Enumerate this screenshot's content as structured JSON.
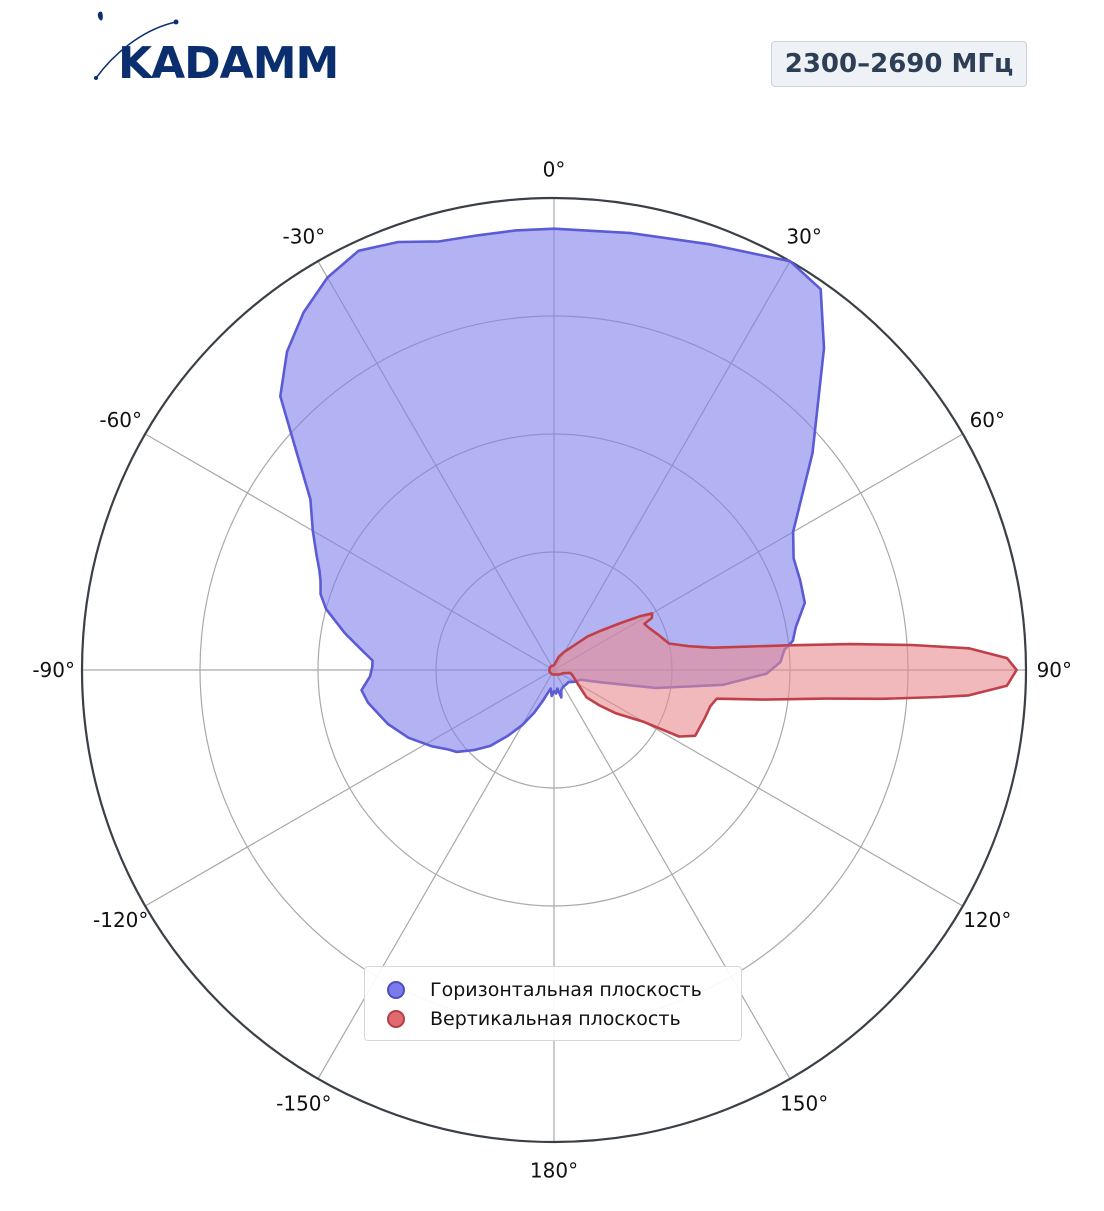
{
  "brand": {
    "name": "KADAMM",
    "color": "#0b2f6e"
  },
  "frequency_badge": "2300–2690 МГц",
  "chart_data": {
    "type": "polar",
    "angular_unit": "degrees",
    "zero_direction": "top",
    "direction": "clockwise",
    "angle_ticks": [
      0,
      30,
      60,
      90,
      120,
      150,
      180,
      -150,
      -120,
      -90,
      -60,
      -30
    ],
    "angle_tick_labels": [
      "0°",
      "30°",
      "60°",
      "90°",
      "120°",
      "150°",
      "180°",
      "-150°",
      "-120°",
      "-90°",
      "-60°",
      "-30°"
    ],
    "radial_range": [
      0,
      1
    ],
    "radial_gridlines": [
      0.25,
      0.5,
      0.75,
      1.0
    ],
    "radial_tick_labels_shown": false,
    "grid": true,
    "legend_position": "lower-center",
    "series": [
      {
        "name": "Горизонтальная плоскость",
        "color": "#5b5bd6",
        "fill": "#8080ec",
        "points": [
          [
            0,
            0.935
          ],
          [
            10,
            0.94
          ],
          [
            20,
            0.96
          ],
          [
            30,
            1.0
          ],
          [
            35,
            0.985
          ],
          [
            40,
            0.89
          ],
          [
            50,
            0.715
          ],
          [
            60,
            0.585
          ],
          [
            65,
            0.56
          ],
          [
            70,
            0.555
          ],
          [
            75,
            0.55
          ],
          [
            80,
            0.52
          ],
          [
            83,
            0.51
          ],
          [
            85,
            0.49
          ],
          [
            88,
            0.48
          ],
          [
            91,
            0.45
          ],
          [
            95,
            0.36
          ],
          [
            100,
            0.22
          ],
          [
            105,
            0.1
          ],
          [
            110,
            0.06
          ],
          [
            120,
            0.05
          ],
          [
            130,
            0.04
          ],
          [
            140,
            0.04
          ],
          [
            150,
            0.04
          ],
          [
            160,
            0.045
          ],
          [
            165,
            0.06
          ],
          [
            170,
            0.04
          ],
          [
            175,
            0.05
          ],
          [
            180,
            0.045
          ],
          [
            -175,
            0.055
          ],
          [
            -170,
            0.04
          ],
          [
            -165,
            0.05
          ],
          [
            -160,
            0.07
          ],
          [
            -155,
            0.1
          ],
          [
            -150,
            0.135
          ],
          [
            -145,
            0.17
          ],
          [
            -140,
            0.21
          ],
          [
            -135,
            0.24
          ],
          [
            -130,
            0.27
          ],
          [
            -127,
            0.28
          ],
          [
            -122,
            0.305
          ],
          [
            -115,
            0.34
          ],
          [
            -108,
            0.37
          ],
          [
            -100,
            0.4
          ],
          [
            -96,
            0.41
          ],
          [
            -92,
            0.39
          ],
          [
            -89,
            0.385
          ],
          [
            -87,
            0.385
          ],
          [
            -84,
            0.41
          ],
          [
            -80,
            0.45
          ],
          [
            -75,
            0.5
          ],
          [
            -72,
            0.52
          ],
          [
            -69,
            0.53
          ],
          [
            -67,
            0.54
          ],
          [
            -64,
            0.56
          ],
          [
            -60,
            0.59
          ],
          [
            -55,
            0.63
          ],
          [
            -50,
            0.71
          ],
          [
            -45,
            0.82
          ],
          [
            -40,
            0.88
          ],
          [
            -35,
            0.925
          ],
          [
            -30,
            0.96
          ],
          [
            -25,
            0.98
          ],
          [
            -20,
            0.965
          ],
          [
            -15,
            0.94
          ],
          [
            -10,
            0.935
          ],
          [
            -5,
            0.935
          ],
          [
            0,
            0.935
          ]
        ]
      },
      {
        "name": "Вертикальная плоскость",
        "color": "#c0404a",
        "fill": "#e88a90",
        "points": [
          [
            0,
            0.01
          ],
          [
            20,
            0.03
          ],
          [
            30,
            0.045
          ],
          [
            40,
            0.07
          ],
          [
            45,
            0.1
          ],
          [
            50,
            0.13
          ],
          [
            55,
            0.175
          ],
          [
            58,
            0.215
          ],
          [
            60,
            0.24
          ],
          [
            62,
            0.235
          ],
          [
            63,
            0.215
          ],
          [
            66,
            0.22
          ],
          [
            72,
            0.235
          ],
          [
            77,
            0.25
          ],
          [
            80,
            0.29
          ],
          [
            82,
            0.34
          ],
          [
            84,
            0.5
          ],
          [
            85,
            0.63
          ],
          [
            86,
            0.76
          ],
          [
            87,
            0.88
          ],
          [
            88.5,
            0.96
          ],
          [
            90,
            0.98
          ],
          [
            92,
            0.96
          ],
          [
            93.5,
            0.88
          ],
          [
            94,
            0.82
          ],
          [
            95,
            0.7
          ],
          [
            96,
            0.58
          ],
          [
            98,
            0.45
          ],
          [
            100,
            0.35
          ],
          [
            103,
            0.34
          ],
          [
            108,
            0.335
          ],
          [
            115,
            0.33
          ],
          [
            118,
            0.3
          ],
          [
            120,
            0.22
          ],
          [
            125,
            0.16
          ],
          [
            128,
            0.12
          ],
          [
            130,
            0.09
          ],
          [
            125,
            0.07
          ],
          [
            115,
            0.05
          ],
          [
            105,
            0.04
          ],
          [
            100,
            0.035
          ],
          [
            110,
            0.02
          ],
          [
            130,
            0.015
          ],
          [
            160,
            0.01
          ],
          [
            180,
            0.01
          ],
          [
            -160,
            0.01
          ],
          [
            -120,
            0.01
          ],
          [
            -100,
            0.01
          ],
          [
            -80,
            0.01
          ],
          [
            -60,
            0.01
          ],
          [
            -40,
            0.01
          ],
          [
            -20,
            0.01
          ],
          [
            0,
            0.01
          ]
        ]
      }
    ]
  }
}
